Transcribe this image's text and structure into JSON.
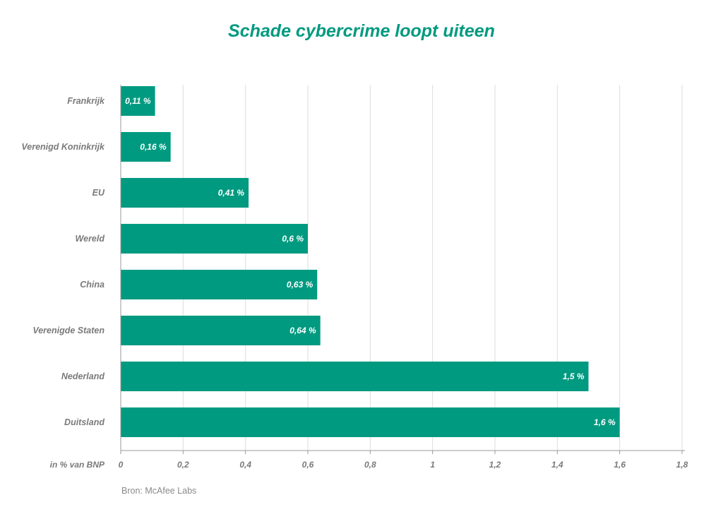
{
  "title": "Schade cybercrime loopt uiteen",
  "source": "Bron: McAfee Labs",
  "colors": {
    "bar": "#009a80",
    "grid": "#dddddd",
    "axis": "#9a9a9a",
    "title": "#009a80",
    "label": "#7a7a7a"
  },
  "chart_data": {
    "type": "bar",
    "orientation": "horizontal",
    "title": "Schade cybercrime loopt uiteen",
    "xlabel": "in % van BNP",
    "ylabel": "",
    "categories": [
      "Frankrijk",
      "Verenigd Koninkrijk",
      "EU",
      "Wereld",
      "China",
      "Verenigde Staten",
      "Nederland",
      "Duitsland"
    ],
    "values": [
      0.11,
      0.16,
      0.41,
      0.6,
      0.63,
      0.64,
      1.5,
      1.6
    ],
    "value_labels": [
      "0,11 %",
      "0,16 %",
      "0,41 %",
      "0,6 %",
      "0,63 %",
      "0,64 %",
      "1,5 %",
      "1,6 %"
    ],
    "xlim": [
      0,
      1.8
    ],
    "x_ticks": [
      0,
      0.2,
      0.4,
      0.6,
      0.8,
      1,
      1.2,
      1.4,
      1.6,
      1.8
    ],
    "x_tick_labels": [
      "0",
      "0,2",
      "0,4",
      "0,6",
      "0,8",
      "1",
      "1,2",
      "1,4",
      "1,6",
      "1,8"
    ],
    "grid": true,
    "legend": "none"
  }
}
